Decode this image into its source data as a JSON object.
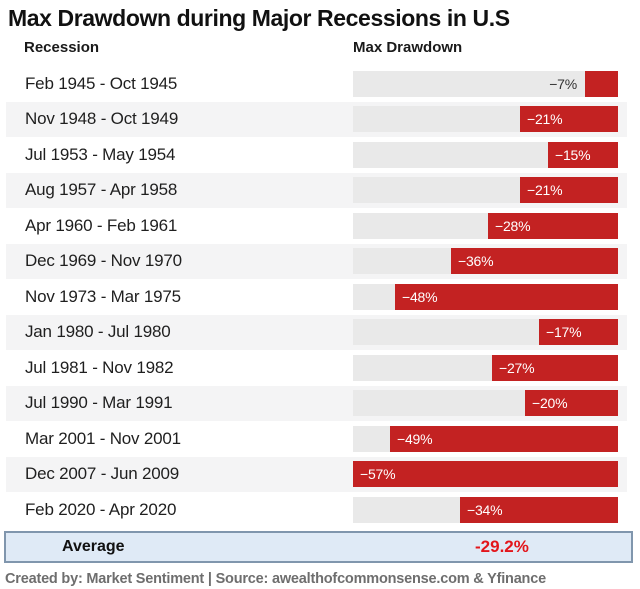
{
  "title": "Max Drawdown during Major Recessions in U.S",
  "columns": {
    "recession": "Recession",
    "max_drawdown": "Max Drawdown"
  },
  "chart_data": {
    "type": "bar",
    "orientation": "horizontal-right-aligned",
    "title": "Max Drawdown during Major Recessions in U.S",
    "xlabel": "Max Drawdown",
    "ylabel": "Recession",
    "xlim": [
      0,
      -57
    ],
    "grid": false,
    "categories": [
      "Feb 1945 - Oct 1945",
      "Nov 1948 - Oct 1949",
      "Jul 1953 - May 1954",
      "Aug 1957 - Apr 1958",
      "Apr 1960 - Feb 1961",
      "Dec 1969 - Nov 1970",
      "Nov 1973 - Mar 1975",
      "Jan 1980 - Jul 1980",
      "Jul 1981 - Nov 1982",
      "Jul 1990 - Mar 1991",
      "Mar 2001 - Nov 2001",
      "Dec 2007 - Jun 2009",
      "Feb 2020 - Apr 2020"
    ],
    "values": [
      -7,
      -21,
      -15,
      -21,
      -28,
      -36,
      -48,
      -17,
      -27,
      -20,
      -49,
      -57,
      -34
    ],
    "value_labels": [
      "−7%",
      "−21%",
      "−15%",
      "−21%",
      "−28%",
      "−36%",
      "−48%",
      "−17%",
      "−27%",
      "−20%",
      "−49%",
      "−57%",
      "−34%"
    ],
    "average": -29.2
  },
  "average": {
    "label": "Average",
    "value": "-29.2%"
  },
  "footer": "Created by: Market Sentiment | Source: awealthofcommonsense.com & Yfinance",
  "colors": {
    "bar": "#c32222",
    "track": "#e9e9e9",
    "alt_row_bg": "#f4f4f5",
    "average_bg": "#dfeaf6",
    "average_border": "#8096ad",
    "average_value_text": "#e3151b",
    "footer_text": "#6e6e6e"
  }
}
